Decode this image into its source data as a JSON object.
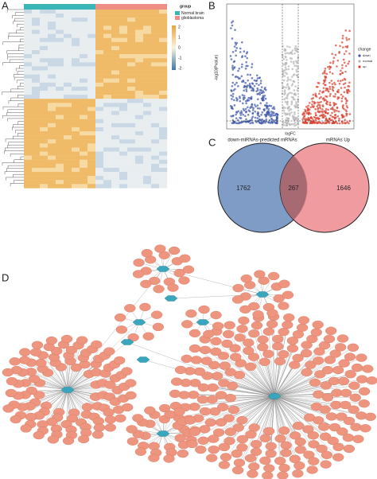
{
  "panels": {
    "A": {
      "label": "A",
      "legend_title": "group",
      "groups": [
        "Normal brain",
        "glioblastoma"
      ],
      "scale_ticks": [
        "2",
        "1",
        "0",
        "-1",
        "-2"
      ]
    },
    "B": {
      "label": "B",
      "y_label": "-log10(Pvalue)",
      "x_label": "logFC",
      "legend_title": "change",
      "legend_items": [
        "down",
        "normal",
        "up"
      ]
    },
    "C": {
      "label": "C",
      "set_labels": [
        "down-miRNAs-predicted mRNAs",
        "mRNAs Up"
      ],
      "counts": [
        "1762",
        "267",
        "1646"
      ]
    },
    "D": {
      "label": "D"
    }
  }
}
